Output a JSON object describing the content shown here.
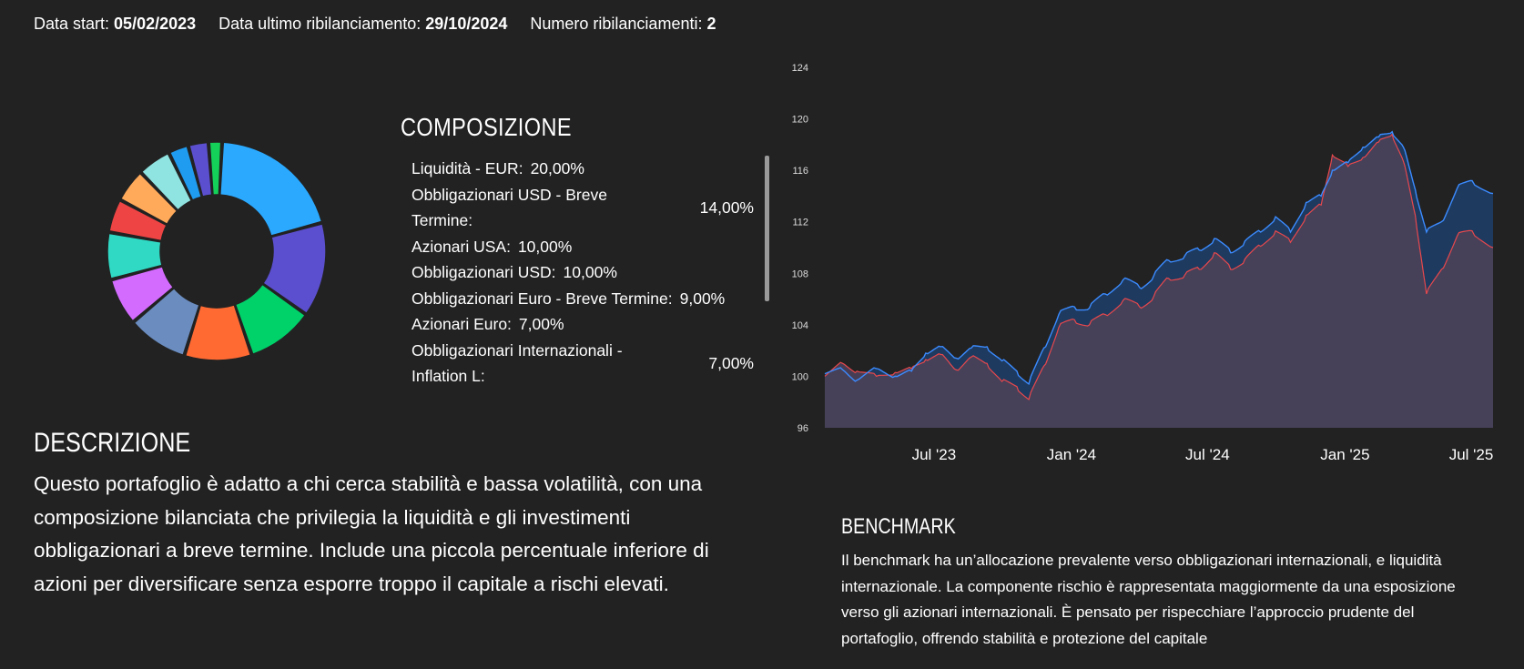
{
  "header": {
    "start_label": "Data start:",
    "start_value": "05/02/2023",
    "rebalance_label": "Data ultimo ribilanciamento:",
    "rebalance_value": "29/10/2024",
    "count_label": "Numero ribilanciamenti:",
    "count_value": "2"
  },
  "composition": {
    "title": "COMPOSIZIONE",
    "items": [
      {
        "label": "Liquidità - EUR:",
        "pct": "20,00%"
      },
      {
        "label": "Obbligazionari USD - Breve Termine:",
        "pct": "14,00%"
      },
      {
        "label": "Azionari USA:",
        "pct": "10,00%"
      },
      {
        "label": "Obbligazionari USD:",
        "pct": "10,00%"
      },
      {
        "label": "Obbligazionari Euro - Breve Termine:",
        "pct": "9,00%"
      },
      {
        "label": "Azionari Euro:",
        "pct": "7,00%"
      },
      {
        "label": "Obbligazionari Internazionali - Inflation L:",
        "pct": "7,00%"
      }
    ]
  },
  "donut": {
    "segments": [
      {
        "value": 20,
        "color": "#2aa9ff"
      },
      {
        "value": 14,
        "color": "#5b4fcf"
      },
      {
        "value": 10,
        "color": "#00d26a"
      },
      {
        "value": 10,
        "color": "#ff6a33"
      },
      {
        "value": 9,
        "color": "#6a8cbf"
      },
      {
        "value": 7,
        "color": "#d36bff"
      },
      {
        "value": 7,
        "color": "#2fd9c4"
      },
      {
        "value": 5,
        "color": "#ef4444"
      },
      {
        "value": 5,
        "color": "#ffa95a"
      },
      {
        "value": 5,
        "color": "#8fe3e0"
      },
      {
        "value": 3,
        "color": "#1f9bf0"
      },
      {
        "value": 3,
        "color": "#5b4fcf"
      },
      {
        "value": 2,
        "color": "#14d15a"
      }
    ]
  },
  "description": {
    "title": "DESCRIZIONE",
    "text": "Questo portafoglio è adatto a chi cerca stabilità e bassa volatilità, con una composizione bilanciata che privilegia la liquidità e gli investimenti obbligazionari a breve termine. Include una piccola percentuale inferiore di azioni per diversificare senza esporre troppo il capitale a rischi elevati."
  },
  "benchmark": {
    "title": "BENCHMARK",
    "text": "Il benchmark ha un’allocazione prevalente verso obbligazionari internazionali, e liquidità internazionale. La componente rischio è rappresentata maggiormente da una esposizione verso gli azionari internazionali. È pensato per rispecchiare l’approccio prudente del portafoglio, offrendo stabilità e protezione del capitale"
  },
  "chart_data": {
    "type": "area",
    "ylim": [
      96,
      124
    ],
    "yticks": [
      "96",
      "100",
      "104",
      "108",
      "112",
      "116",
      "120",
      "124"
    ],
    "xticks": [
      "Jul '23",
      "Jan '24",
      "Jul '24",
      "Jan '25",
      "Jul '25"
    ],
    "xtick_dates": [
      "2023-07-01",
      "2024-01-01",
      "2024-07-01",
      "2025-01-01",
      "2025-07-01"
    ],
    "x_range": [
      "2023-02-05",
      "2025-07-18"
    ],
    "colors": {
      "portfolio": "#3b8bff",
      "benchmark": "#e8484c",
      "fill_portfolio": "#1e3a5f",
      "fill_benchmark": "#4a4058"
    },
    "series": [
      {
        "key": "portfolio",
        "x": [
          "2023-02-05",
          "2023-03-01",
          "2023-03-20",
          "2023-04-15",
          "2023-05-10",
          "2023-06-01",
          "2023-06-20",
          "2023-07-10",
          "2023-07-31",
          "2023-08-20",
          "2023-09-10",
          "2023-09-30",
          "2023-10-20",
          "2023-11-05",
          "2023-11-25",
          "2023-12-15",
          "2024-01-05",
          "2024-01-25",
          "2024-02-15",
          "2024-03-10",
          "2024-04-01",
          "2024-04-20",
          "2024-05-10",
          "2024-06-01",
          "2024-06-20",
          "2024-07-10",
          "2024-08-01",
          "2024-08-20",
          "2024-09-10",
          "2024-09-30",
          "2024-10-20",
          "2024-11-10",
          "2024-11-30",
          "2024-12-15",
          "2025-01-05",
          "2025-01-25",
          "2025-02-15",
          "2025-03-05",
          "2025-03-20",
          "2025-04-05",
          "2025-04-20",
          "2025-05-10",
          "2025-05-31",
          "2025-06-20",
          "2025-07-18"
        ],
        "y": [
          100.2,
          100.5,
          99.7,
          100.6,
          100.0,
          100.4,
          101.8,
          102.3,
          101.4,
          102.2,
          102.3,
          101.2,
          100.4,
          99.4,
          102.2,
          104.8,
          105.4,
          105.3,
          106.4,
          107.5,
          106.9,
          107.8,
          109.0,
          109.4,
          109.8,
          110.7,
          109.6,
          110.5,
          111.2,
          112.4,
          111.2,
          113.5,
          114.0,
          116.0,
          116.6,
          117.8,
          118.6,
          119.0,
          117.8,
          114.5,
          111.2,
          112.0,
          114.6,
          115.2,
          114.2
        ]
      },
      {
        "key": "benchmark",
        "x": [
          "2023-02-05",
          "2023-03-01",
          "2023-03-20",
          "2023-04-15",
          "2023-05-10",
          "2023-06-01",
          "2023-06-20",
          "2023-07-10",
          "2023-07-31",
          "2023-08-20",
          "2023-09-10",
          "2023-09-30",
          "2023-10-20",
          "2023-11-05",
          "2023-11-25",
          "2023-12-15",
          "2024-01-05",
          "2024-01-25",
          "2024-02-15",
          "2024-03-10",
          "2024-04-01",
          "2024-04-20",
          "2024-05-10",
          "2024-06-01",
          "2024-06-20",
          "2024-07-10",
          "2024-08-01",
          "2024-08-20",
          "2024-09-10",
          "2024-09-30",
          "2024-10-20",
          "2024-11-10",
          "2024-11-30",
          "2024-12-15",
          "2025-01-05",
          "2025-01-25",
          "2025-02-15",
          "2025-03-05",
          "2025-03-20",
          "2025-04-05",
          "2025-04-20",
          "2025-05-10",
          "2025-05-31",
          "2025-06-20",
          "2025-07-18"
        ],
        "y": [
          100.0,
          101.0,
          100.4,
          100.0,
          100.3,
          100.6,
          101.3,
          101.7,
          100.5,
          101.5,
          101.0,
          99.6,
          99.2,
          98.2,
          100.8,
          103.8,
          104.4,
          104.0,
          104.8,
          105.9,
          105.4,
          106.2,
          107.6,
          107.9,
          108.3,
          109.6,
          108.3,
          109.1,
          110.1,
          111.3,
          110.4,
          112.5,
          113.3,
          117.2,
          116.3,
          117.0,
          118.2,
          118.8,
          116.7,
          112.5,
          106.4,
          108.3,
          110.9,
          111.3,
          110.0
        ]
      }
    ]
  }
}
